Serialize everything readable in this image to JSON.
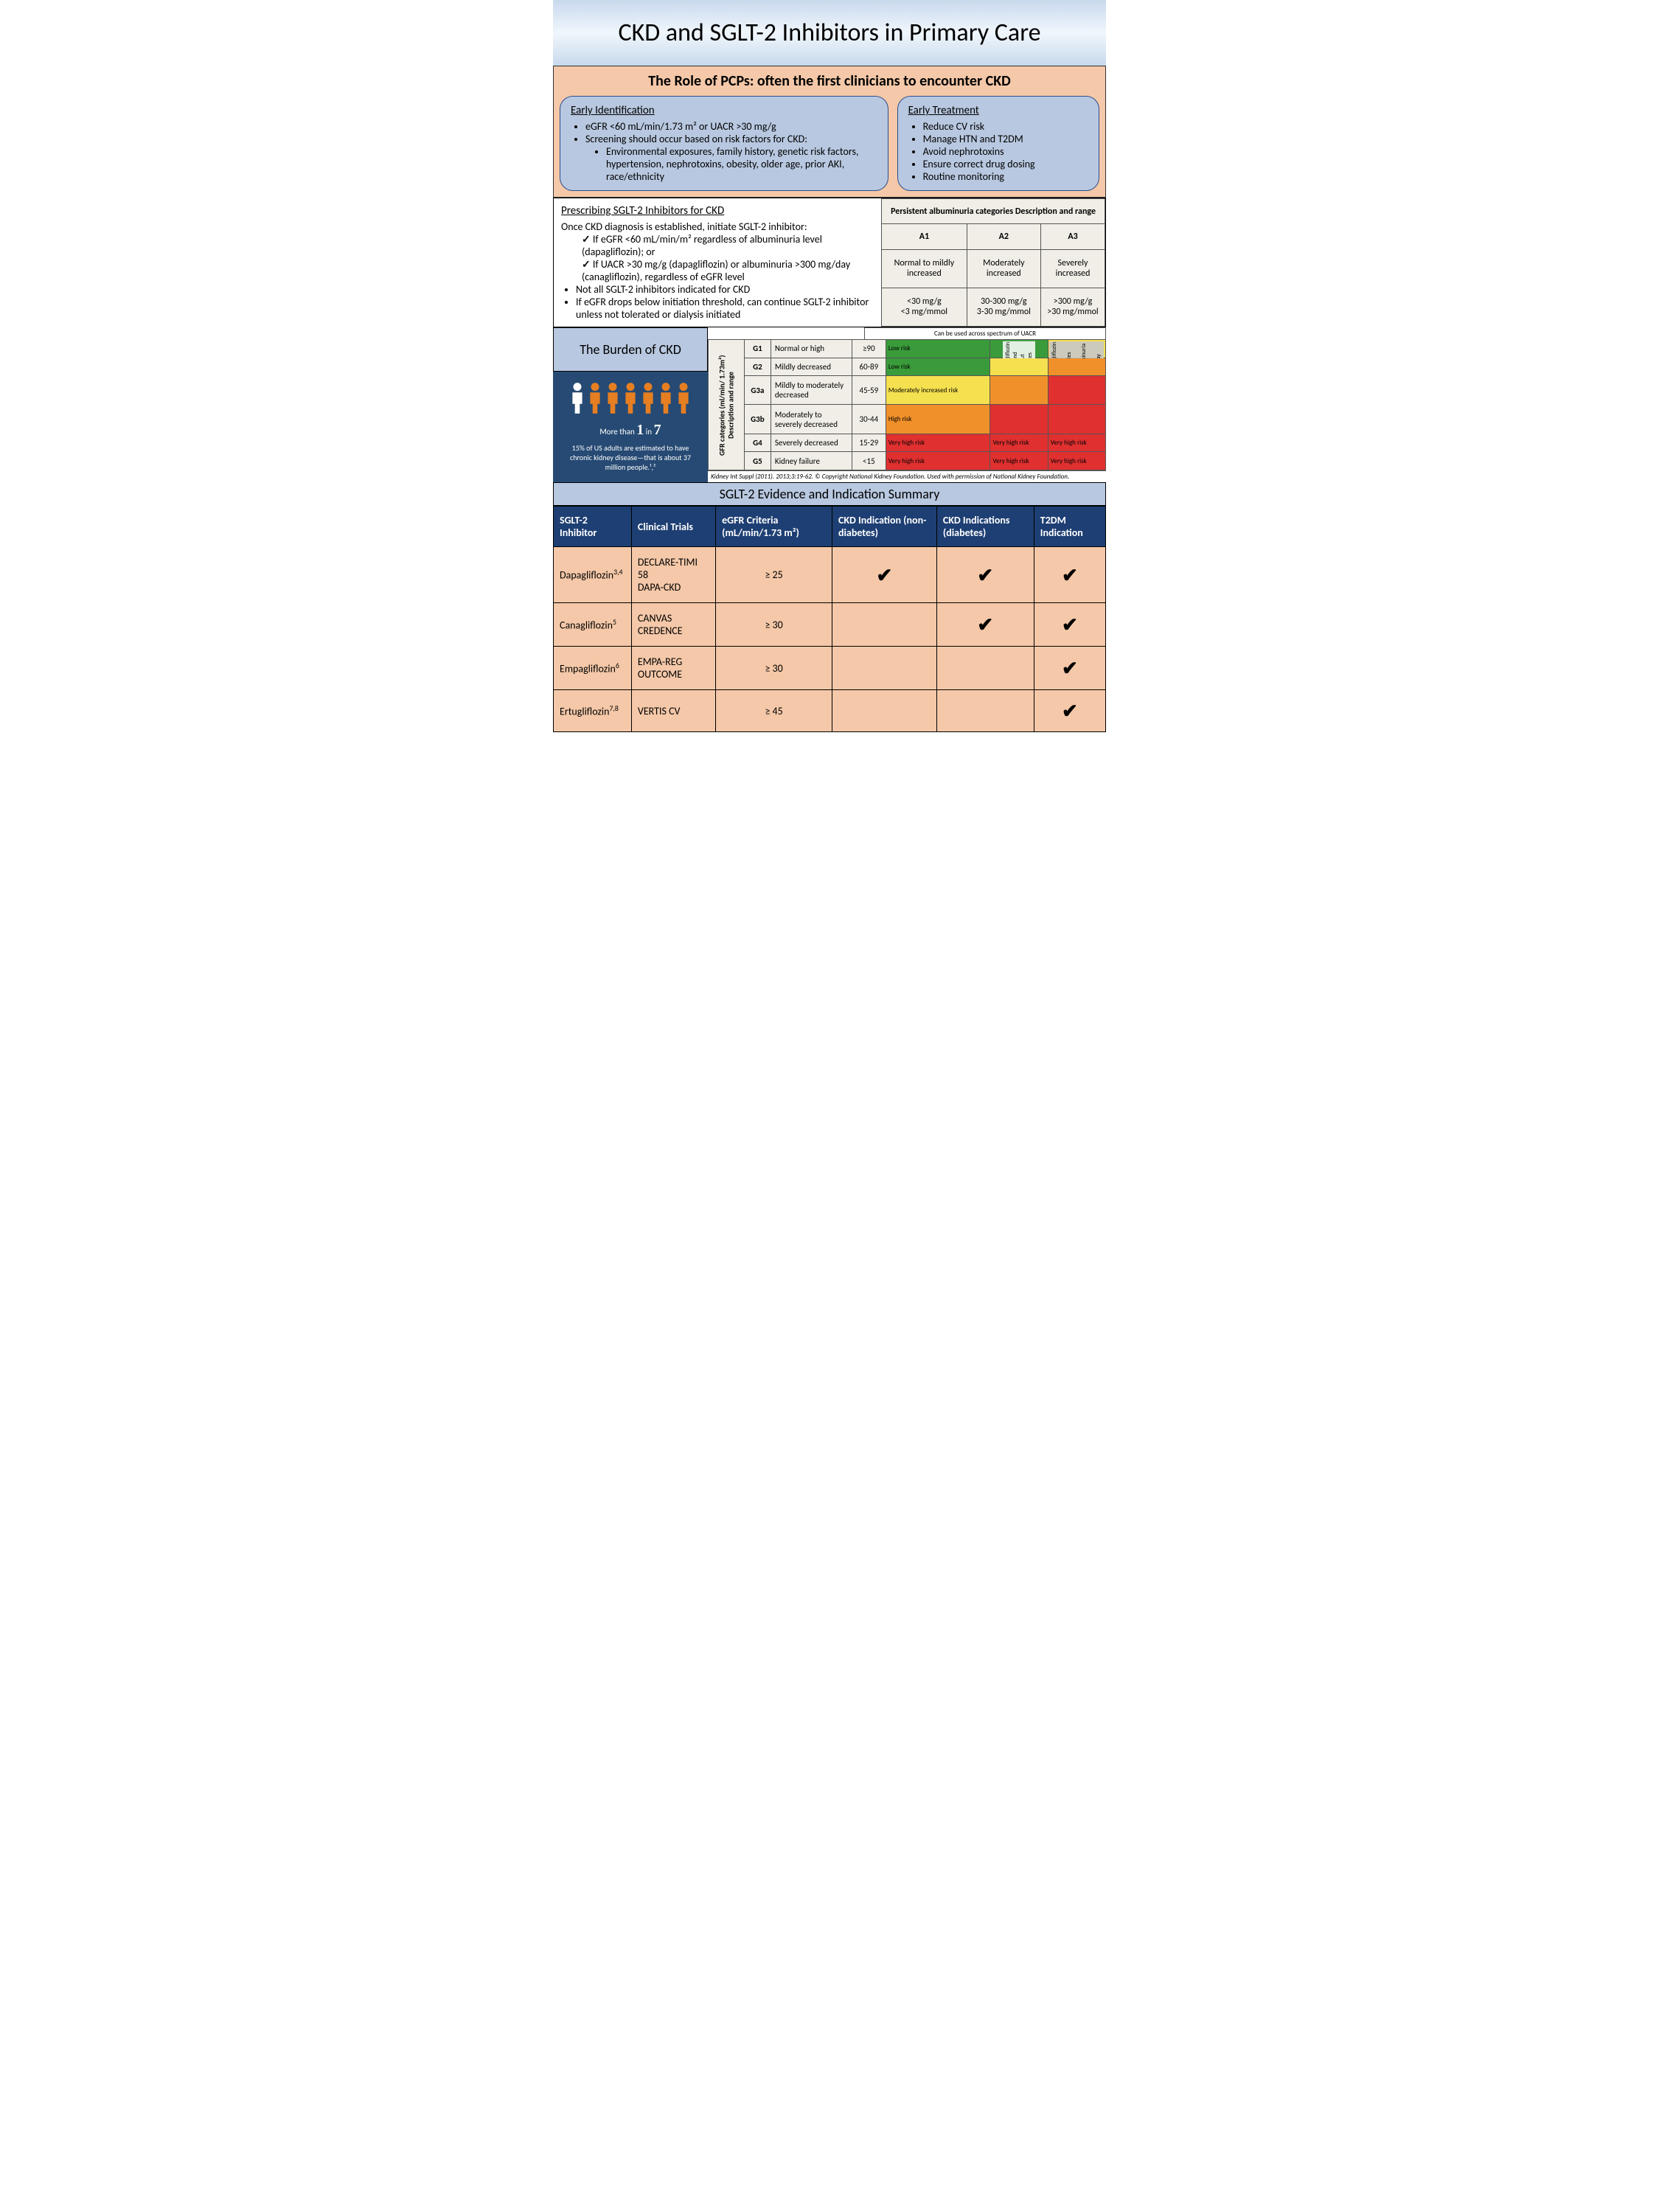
{
  "header": {
    "title": "CKD and SGLT-2 Inhibitors in Primary Care"
  },
  "pcp": {
    "title": "The Role of PCPs: often the first clinicians to encounter CKD",
    "early_id": {
      "heading": "Early Identification",
      "items": [
        "eGFR <60 mL/min/1.73 m² or UACR >30 mg/g",
        "Screening should occur based on risk factors for CKD:"
      ],
      "subitems": [
        "Environmental exposures, family history, genetic risk factors, hypertension, nephrotoxins, obesity, older age, prior AKI, race/ethnicity"
      ]
    },
    "early_tx": {
      "heading": "Early Treatment",
      "items": [
        "Reduce CV risk",
        "Manage HTN and T2DM",
        "Avoid nephrotoxins",
        "Ensure correct drug dosing",
        "Routine monitoring"
      ]
    }
  },
  "prescribe": {
    "heading": "Prescribing SGLT-2 Inhibitors for CKD",
    "intro": "Once CKD diagnosis is established, initiate SGLT-2 inhibitor:",
    "checks": [
      "If eGFR <60 mL/min/m² regardless of albuminuria level (dapagliflozin); or",
      "If UACR >30 mg/g (dapagliflozin) or albuminuria >300 mg/day (canagliflozin), regardless of eGFR level"
    ],
    "bullets": [
      "Not all SGLT-2 inhibitors indicated for CKD",
      "If eGFR drops below initiation threshold, can continue SGLT-2 inhibitor unless not tolerated or dialysis initiated"
    ]
  },
  "albuminuria_table": {
    "title": "Persistent albuminuria categories Description and range",
    "cols": [
      "A1",
      "A2",
      "A3"
    ],
    "desc": [
      "Normal to mildly increased",
      "Moderately increased",
      "Severely increased"
    ],
    "range": [
      "<30 mg/g\n<3 mg/mmol",
      "30-300 mg/g\n3-30 mg/mmol",
      ">300 mg/g\n>30 mg/mmol"
    ]
  },
  "burden": {
    "title": "The Burden of CKD",
    "more_than_prefix": "More than",
    "big1": "1",
    "in": "in",
    "big7": "7",
    "text": "15% of US adults are estimated to have chronic kidney disease—that is about 37 million people.¹,²",
    "icon_colors": {
      "highlight": "#ffffff",
      "other": "#e67e22"
    },
    "people_count": 7
  },
  "gfr": {
    "header_rot": "GFR categories (ml/min/ 1.73m²)\nDescription and range",
    "uacr_note": "Can be used across spectrum of UACR",
    "arrows": {
      "dapa": "Dapagliflozin with and without diabetes",
      "cana": "Canagliflozin with diabetes and albuminuria >300 mg/day"
    },
    "rows": [
      {
        "stage": "G1",
        "desc": "Normal or high",
        "range": "≥90",
        "risk": [
          "Low risk",
          "",
          ""
        ],
        "class": [
          "risk-low",
          "risk-low",
          "risk-mod"
        ]
      },
      {
        "stage": "G2",
        "desc": "Mildly decreased",
        "range": "60-89",
        "risk": [
          "Low risk",
          "",
          ""
        ],
        "class": [
          "risk-low",
          "risk-mod",
          "risk-high"
        ]
      },
      {
        "stage": "G3a",
        "desc": "Mildly to moderately decreased",
        "range": "45-59",
        "risk": [
          "Moderately increased risk",
          "",
          ""
        ],
        "class": [
          "risk-mod",
          "risk-high",
          "risk-vhigh"
        ]
      },
      {
        "stage": "G3b",
        "desc": "Moderately to severely decreased",
        "range": "30-44",
        "risk": [
          "High risk",
          "",
          ""
        ],
        "class": [
          "risk-high",
          "risk-vhigh",
          "risk-vhigh"
        ]
      },
      {
        "stage": "G4",
        "desc": "Severely decreased",
        "range": "15-29",
        "risk": [
          "Very high risk",
          "Very high risk",
          "Very high risk"
        ],
        "class": [
          "risk-vhigh",
          "risk-vhigh",
          "risk-vhigh"
        ]
      },
      {
        "stage": "G5",
        "desc": "Kidney failure",
        "range": "<15",
        "risk": [
          "Very high risk",
          "Very high risk",
          "Very high risk"
        ],
        "class": [
          "risk-vhigh",
          "risk-vhigh",
          "risk-vhigh"
        ]
      }
    ],
    "citation": "Kidney Int Suppl (2011). 2013;3:19-62. © Copyright National Kidney Foundation. Used with permission of National Kidney Foundation."
  },
  "evidence": {
    "title": "SGLT-2 Evidence and Indication Summary",
    "headers": [
      "SGLT-2 Inhibitor",
      "Clinical Trials",
      "eGFR Criteria (mL/min/1.73 m²)",
      "CKD Indication (non-diabetes)",
      "CKD Indications (diabetes)",
      "T2DM Indication"
    ],
    "rows": [
      {
        "drug": "Dapagliflozin",
        "sup": "3,4",
        "trials": "DECLARE-TIMI 58\nDAPA-CKD",
        "egfr": "≥ 25",
        "ckd_nd": true,
        "ckd_d": true,
        "t2dm": true
      },
      {
        "drug": "Canagliflozin",
        "sup": "5",
        "trials": "CANVAS\nCREDENCE",
        "egfr": "≥ 30",
        "ckd_nd": false,
        "ckd_d": true,
        "t2dm": true
      },
      {
        "drug": "Empagliflozin",
        "sup": "6",
        "trials": "EMPA-REG OUTCOME",
        "egfr": "≥ 30",
        "ckd_nd": false,
        "ckd_d": false,
        "t2dm": true
      },
      {
        "drug": "Ertugliflozin",
        "sup": "7,8",
        "trials": "VERTIS CV",
        "egfr": "≥ 45",
        "ckd_nd": false,
        "ckd_d": false,
        "t2dm": true
      }
    ],
    "checkmark": "✔"
  },
  "colors": {
    "header_gradient_top": "#c8d9ed",
    "peach": "#f4c8a8",
    "blue_box": "#b8c8e0",
    "blue_border": "#2a4d8f",
    "navy": "#1e3f73",
    "burden_bg": "#264a73",
    "risk_low": "#3a9b3a",
    "risk_mod": "#f5e050",
    "risk_high": "#f0902a",
    "risk_vhigh": "#e03030"
  }
}
